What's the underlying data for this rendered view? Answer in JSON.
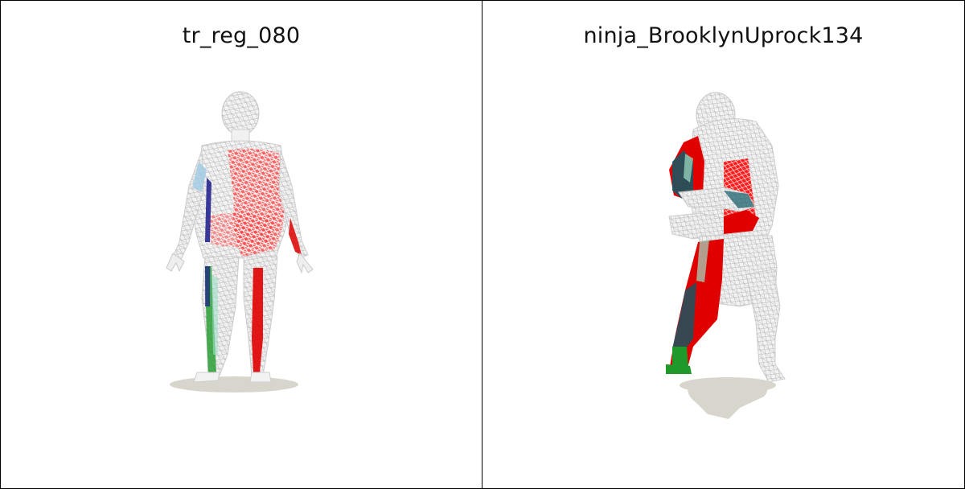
{
  "panels": [
    {
      "title": "tr_reg_080",
      "mesh": "standing human body mesh, wireframe with colored error regions",
      "colors": {
        "wire": "#d9d9d9",
        "shadow": "#d8d5cc",
        "error_high": "#e00000",
        "error_mid": "#1f9a2a",
        "error_low": "#1a1a8c",
        "error_light": "#8fc8e0"
      }
    },
    {
      "title": "ninja_BrooklynUprock134",
      "mesh": "crouching dancer body mesh, wireframe with colored error regions",
      "colors": {
        "wire": "#d9d9d9",
        "shadow": "#d8d5cc",
        "error_high": "#e00000",
        "error_mid": "#1f9a2a",
        "error_low": "#0e5a66",
        "error_light": "#9fe0c8"
      }
    }
  ]
}
